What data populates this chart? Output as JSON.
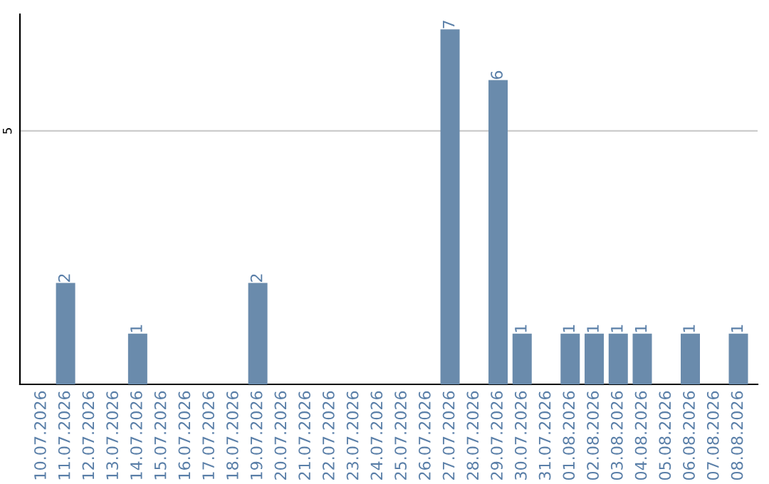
{
  "chart_data": {
    "type": "bar",
    "categories": [
      "10.07.2026",
      "11.07.2026",
      "12.07.2026",
      "13.07.2026",
      "14.07.2026",
      "15.07.2026",
      "16.07.2026",
      "17.07.2026",
      "18.07.2026",
      "19.07.2026",
      "20.07.2026",
      "21.07.2026",
      "22.07.2026",
      "23.07.2026",
      "24.07.2026",
      "25.07.2026",
      "26.07.2026",
      "27.07.2026",
      "28.07.2026",
      "29.07.2026",
      "30.07.2026",
      "31.07.2026",
      "01.08.2026",
      "02.08.2026",
      "03.08.2026",
      "04.08.2026",
      "05.08.2026",
      "06.08.2026",
      "07.08.2026",
      "08.08.2026"
    ],
    "values": [
      0,
      2,
      0,
      0,
      1,
      0,
      0,
      0,
      0,
      2,
      0,
      0,
      0,
      0,
      0,
      0,
      0,
      7,
      0,
      6,
      1,
      0,
      1,
      1,
      1,
      1,
      0,
      1,
      0,
      1
    ],
    "value_labels": [
      null,
      "2",
      null,
      null,
      "1",
      null,
      null,
      null,
      null,
      "2",
      null,
      null,
      null,
      null,
      null,
      null,
      null,
      "7",
      null,
      "6",
      "1",
      null,
      "1",
      "1",
      "1",
      "1",
      null,
      "1",
      null,
      "1"
    ],
    "color": "#6a8bac",
    "ylim": [
      0,
      7.3
    ],
    "yticks": [
      5
    ],
    "grid": "y",
    "legend": false
  }
}
